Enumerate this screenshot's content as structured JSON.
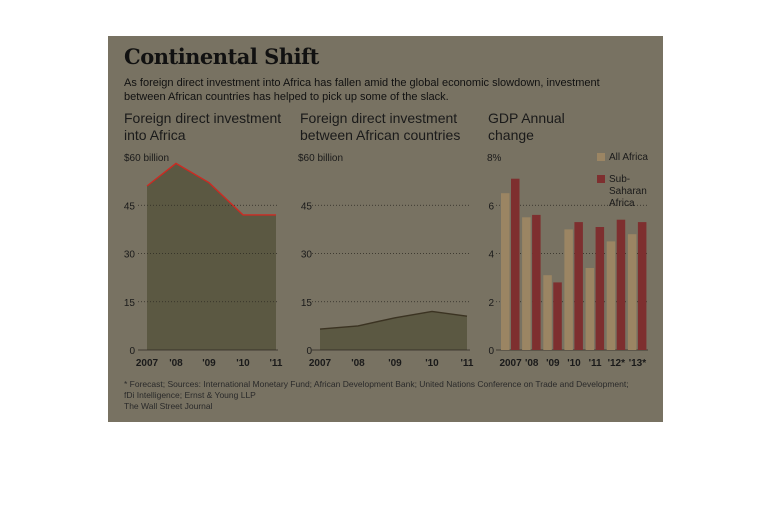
{
  "header": {
    "title": "Continental Shift",
    "subtitle": "As foreign direct investment into Africa has fallen amid the global economic slowdown, investment between African countries has helped to pick up some of the slack."
  },
  "colors": {
    "panel": "#787262",
    "area": "#5b5842",
    "line": "#cc2a22",
    "all_africa": "#9b8563",
    "sub_saharan": "#7e2f2f"
  },
  "chart_data": [
    {
      "type": "area",
      "title": "Foreign direct investment into Africa",
      "unit_label": "$60 billion",
      "categories": [
        "2007",
        "'08",
        "'09",
        "'10",
        "'11"
      ],
      "series": [
        {
          "values": [
            51,
            58,
            52,
            42,
            42
          ]
        }
      ],
      "ylim": [
        0,
        60
      ],
      "yticks": [
        "0",
        "15",
        "30",
        "45"
      ],
      "grid": true
    },
    {
      "type": "area",
      "title": "Foreign direct investment between African countries",
      "unit_label": "$60 billion",
      "categories": [
        "2007",
        "'08",
        "'09",
        "'10",
        "'11"
      ],
      "series": [
        {
          "values": [
            6.5,
            7.5,
            10,
            12,
            10.5
          ]
        }
      ],
      "ylim": [
        0,
        60
      ],
      "yticks": [
        "0",
        "15",
        "30",
        "45"
      ],
      "grid": true
    },
    {
      "type": "bar",
      "title": "GDP Annual change",
      "unit_label": "8%",
      "categories": [
        "2007",
        "'08",
        "'09",
        "'10",
        "'11",
        "'12*",
        "'13*"
      ],
      "series": [
        {
          "name": "All Africa",
          "values": [
            6.5,
            5.5,
            3.1,
            5.0,
            3.4,
            4.5,
            4.8
          ]
        },
        {
          "name": "Sub-Saharan Africa",
          "values": [
            7.1,
            5.6,
            2.8,
            5.3,
            5.1,
            5.4,
            5.3
          ]
        }
      ],
      "ylim": [
        0,
        8
      ],
      "yticks": [
        "0",
        "2",
        "4",
        "6"
      ],
      "legend_position": "top-right",
      "grid": true
    }
  ],
  "footer": {
    "sources_line1": "* Forecast; Sources: International Monetary Fund; African Development Bank; United Nations Conference on Trade and Development;",
    "sources_line2": "fDi Intelligence; Ernst & Young LLP",
    "credit": "The Wall Street Journal"
  }
}
